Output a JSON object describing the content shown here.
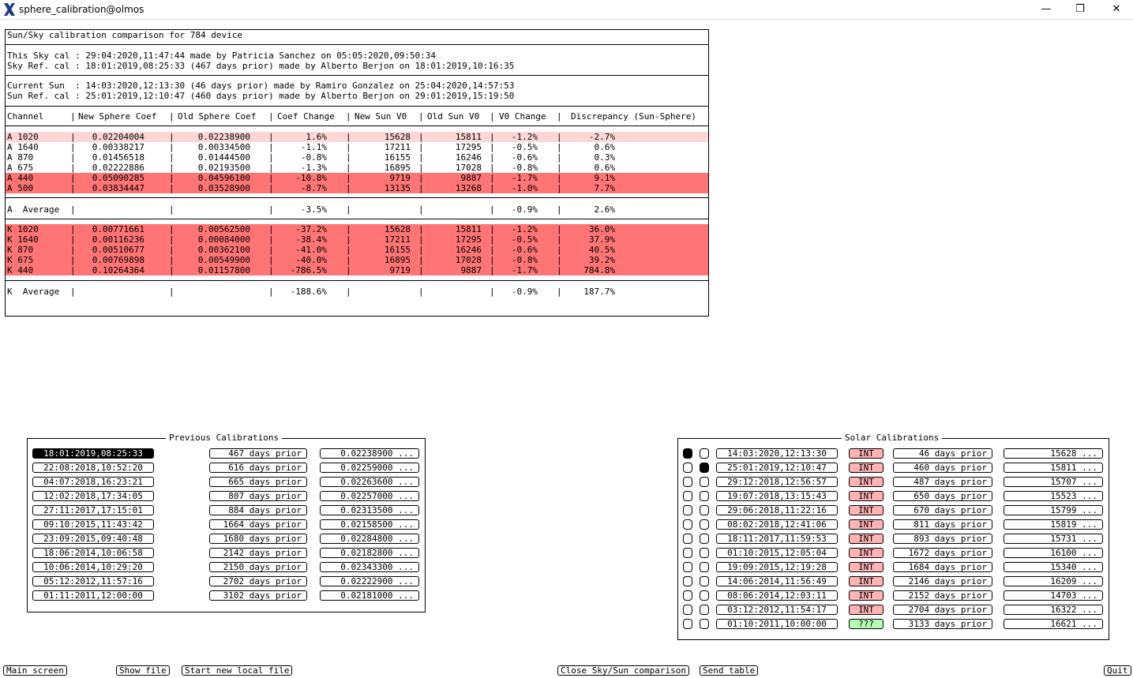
{
  "window": {
    "title": "sphere_calibration@olmos"
  },
  "report": {
    "header": "Sun/Sky calibration comparison for 784 device",
    "sky_lines": [
      "This Sky cal : 29:04:2020,11:47:44 made by Patricia Sanchez on 05:05:2020,09:50:34",
      "Sky Ref. cal : 18:01:2019,08:25:33 (467 days prior) made by Alberto Berjon on 18:01:2019,10:16:35"
    ],
    "sun_lines": [
      "Current Sun  : 14:03:2020,12:13:30 (46 days prior) made by Ramiro Gonzalez on 25:04:2020,14:57:53",
      "Sun Ref. cal : 25:01:2019,12:10:47 (460 days prior) made by Alberto Berjon on 29:01:2019,15:19:50"
    ],
    "columns": [
      "Channel",
      "New Sphere Coef",
      "Old Sphere Coef",
      "Coef Change",
      "New Sun V0",
      "Old Sun V0",
      "V0 Change",
      "Discrepancy (Sun-Sphere)"
    ],
    "a_rows": [
      {
        "ch": "A 1020",
        "new": "0.02204004",
        "old": "0.02238900",
        "chg": "1.6%",
        "nsv": "15628",
        "osv": "15811",
        "v0": "-1.2%",
        "disc": "-2.7%",
        "hl": "pink"
      },
      {
        "ch": "A 1640",
        "new": "0.00338217",
        "old": "0.00334500",
        "chg": "-1.1%",
        "nsv": "17211",
        "osv": "17295",
        "v0": "-0.5%",
        "disc": "0.6%",
        "hl": "none"
      },
      {
        "ch": "A 870",
        "new": "0.01456518",
        "old": "0.01444500",
        "chg": "-0.8%",
        "nsv": "16155",
        "osv": "16246",
        "v0": "-0.6%",
        "disc": "0.3%",
        "hl": "none"
      },
      {
        "ch": "A 675",
        "new": "0.02222886",
        "old": "0.02193500",
        "chg": "-1.3%",
        "nsv": "16895",
        "osv": "17028",
        "v0": "-0.8%",
        "disc": "0.6%",
        "hl": "none"
      },
      {
        "ch": "A 440",
        "new": "0.05090285",
        "old": "0.04596100",
        "chg": "-10.8%",
        "nsv": "9719",
        "osv": "9887",
        "v0": "-1.7%",
        "disc": "9.1%",
        "hl": "red"
      },
      {
        "ch": "A 500",
        "new": "0.03834447",
        "old": "0.03528900",
        "chg": "-8.7%",
        "nsv": "13135",
        "osv": "13268",
        "v0": "-1.0%",
        "disc": "7.7%",
        "hl": "red"
      }
    ],
    "a_average": {
      "label": "A  Average",
      "chg": "-3.5%",
      "v0": "-0.9%",
      "disc": "2.6%"
    },
    "k_rows": [
      {
        "ch": "K 1020",
        "new": "0.00771661",
        "old": "0.00562500",
        "chg": "-37.2%",
        "nsv": "15628",
        "osv": "15811",
        "v0": "-1.2%",
        "disc": "36.0%",
        "hl": "red"
      },
      {
        "ch": "K 1640",
        "new": "0.00116236",
        "old": "0.00084000",
        "chg": "-38.4%",
        "nsv": "17211",
        "osv": "17295",
        "v0": "-0.5%",
        "disc": "37.9%",
        "hl": "red"
      },
      {
        "ch": "K 870",
        "new": "0.00510677",
        "old": "0.00362100",
        "chg": "-41.0%",
        "nsv": "16155",
        "osv": "16246",
        "v0": "-0.6%",
        "disc": "40.5%",
        "hl": "red"
      },
      {
        "ch": "K 675",
        "new": "0.00769898",
        "old": "0.00549900",
        "chg": "-40.0%",
        "nsv": "16895",
        "osv": "17028",
        "v0": "-0.8%",
        "disc": "39.2%",
        "hl": "red"
      },
      {
        "ch": "K 440",
        "new": "0.10264364",
        "old": "0.01157800",
        "chg": "-786.5%",
        "nsv": "9719",
        "osv": "9887",
        "v0": "-1.7%",
        "disc": "784.8%",
        "hl": "red"
      }
    ],
    "k_average": {
      "label": "K  Average",
      "chg": "-188.6%",
      "v0": "-0.9%",
      "disc": "187.7%"
    }
  },
  "previous": {
    "title": "Previous Calibrations",
    "rows": [
      {
        "date": "18:01:2019,08:25:33",
        "days": "467 days prior",
        "coef": "0.02238900 ...",
        "selected": true
      },
      {
        "date": "22:08:2018,10:52:20",
        "days": "616 days prior",
        "coef": "0.02259000 ...",
        "selected": false
      },
      {
        "date": "04:07:2018,16:23:21",
        "days": "665 days prior",
        "coef": "0.02263600 ...",
        "selected": false
      },
      {
        "date": "12:02:2018,17:34:05",
        "days": "807 days prior",
        "coef": "0.02257000 ...",
        "selected": false
      },
      {
        "date": "27:11:2017,17:15:01",
        "days": "884 days prior",
        "coef": "0.02313500 ...",
        "selected": false
      },
      {
        "date": "09:10:2015,11:43:42",
        "days": "1664 days prior",
        "coef": "0.02158500 ...",
        "selected": false
      },
      {
        "date": "23:09:2015,09:40:48",
        "days": "1680 days prior",
        "coef": "0.02284800 ...",
        "selected": false
      },
      {
        "date": "18:06:2014,10:06:58",
        "days": "2142 days prior",
        "coef": "0.02182800 ...",
        "selected": false
      },
      {
        "date": "10:06:2014,10:29:20",
        "days": "2150 days prior",
        "coef": "0.02343300 ...",
        "selected": false
      },
      {
        "date": "05:12:2012,11:57:16",
        "days": "2702 days prior",
        "coef": "0.02222900 ...",
        "selected": false
      },
      {
        "date": "01:11:2011,12:00:00",
        "days": "3102 days prior",
        "coef": "0.02181000 ...",
        "selected": false
      }
    ]
  },
  "solar": {
    "title": "Solar Calibrations",
    "rows": [
      {
        "c1": true,
        "c2": false,
        "date": "14:03:2020,12:13:30",
        "type": "INT",
        "days": "46 days prior",
        "v0": "15628 ..."
      },
      {
        "c1": false,
        "c2": true,
        "date": "25:01:2019,12:10:47",
        "type": "INT",
        "days": "460 days prior",
        "v0": "15811 ..."
      },
      {
        "c1": false,
        "c2": false,
        "date": "29:12:2018,12:56:57",
        "type": "INT",
        "days": "487 days prior",
        "v0": "15707 ..."
      },
      {
        "c1": false,
        "c2": false,
        "date": "19:07:2018,13:15:43",
        "type": "INT",
        "days": "650 days prior",
        "v0": "15523 ..."
      },
      {
        "c1": false,
        "c2": false,
        "date": "29:06:2018,11:22:16",
        "type": "INT",
        "days": "670 days prior",
        "v0": "15799 ..."
      },
      {
        "c1": false,
        "c2": false,
        "date": "08:02:2018,12:41:06",
        "type": "INT",
        "days": "811 days prior",
        "v0": "15819 ..."
      },
      {
        "c1": false,
        "c2": false,
        "date": "18:11:2017,11:59:53",
        "type": "INT",
        "days": "893 days prior",
        "v0": "15731 ..."
      },
      {
        "c1": false,
        "c2": false,
        "date": "01:10:2015,12:05:04",
        "type": "INT",
        "days": "1672 days prior",
        "v0": "16100 ..."
      },
      {
        "c1": false,
        "c2": false,
        "date": "19:09:2015,12:19:28",
        "type": "INT",
        "days": "1684 days prior",
        "v0": "15340 ..."
      },
      {
        "c1": false,
        "c2": false,
        "date": "14:06:2014,11:56:49",
        "type": "INT",
        "days": "2146 days prior",
        "v0": "16209 ..."
      },
      {
        "c1": false,
        "c2": false,
        "date": "08:06:2014,12:03:11",
        "type": "INT",
        "days": "2152 days prior",
        "v0": "14703 ..."
      },
      {
        "c1": false,
        "c2": false,
        "date": "03:12:2012,11:54:17",
        "type": "INT",
        "days": "2704 days prior",
        "v0": "16322 ..."
      },
      {
        "c1": false,
        "c2": false,
        "date": "01:10:2011,10:00:00",
        "type": "???",
        "days": "3133 days prior",
        "v0": "16621 ..."
      }
    ]
  },
  "buttons": {
    "main_screen": "Main screen",
    "show_file": "Show file",
    "start_new_local_file": "Start new local file",
    "close_comparison": "Close Sky/Sun comparison",
    "send_table": "Send table",
    "quit": "Quit"
  },
  "colors": {
    "pink": "#ffd6d6",
    "red": "#ff7474",
    "int": "#ffb3b3",
    "unknown": "#b3ffb3"
  }
}
